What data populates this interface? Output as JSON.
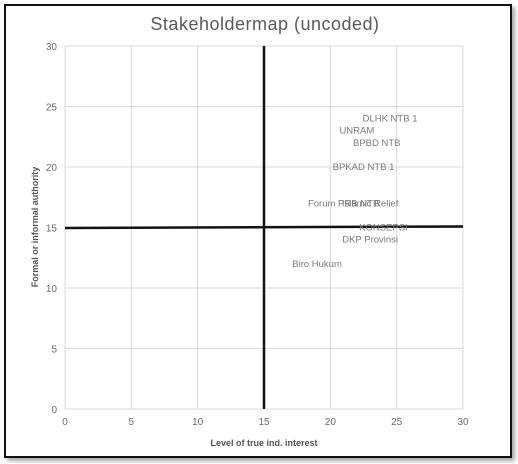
{
  "chart_data": {
    "type": "scatter",
    "title": "Stakeholdermap  (uncoded)",
    "xlabel": "Level of true ind. interest",
    "ylabel": "Formal or informal authority",
    "xlim": [
      0,
      30
    ],
    "ylim": [
      0,
      30
    ],
    "xticks": [
      0,
      5,
      10,
      15,
      20,
      25,
      30
    ],
    "yticks": [
      0,
      5,
      10,
      15,
      20,
      25,
      30
    ],
    "grid": true,
    "quadrant_lines": {
      "x": 15,
      "y": 15
    },
    "points": [
      {
        "label": "DLHK NTB 1",
        "x": 24.5,
        "y": 24
      },
      {
        "label": "UNRAM",
        "x": 22,
        "y": 23
      },
      {
        "label": "BPBD NTB",
        "x": 23.5,
        "y": 22
      },
      {
        "label": "BPKAD NTB 1",
        "x": 22.5,
        "y": 20
      },
      {
        "label": "Forum PRB NTB",
        "x": 21,
        "y": 17
      },
      {
        "label": "Islamic Relief",
        "x": 23,
        "y": 17
      },
      {
        "label": "KONSEPSI",
        "x": 24,
        "y": 15
      },
      {
        "label": "DKP Provinsi",
        "x": 23,
        "y": 14
      },
      {
        "label": "Biro Hukum",
        "x": 19,
        "y": 12
      }
    ]
  }
}
